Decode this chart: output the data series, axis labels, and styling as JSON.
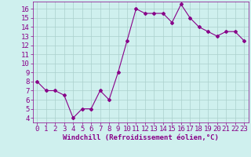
{
  "x": [
    0,
    1,
    2,
    3,
    4,
    5,
    6,
    7,
    8,
    9,
    10,
    11,
    12,
    13,
    14,
    15,
    16,
    17,
    18,
    19,
    20,
    21,
    22,
    23
  ],
  "y": [
    8,
    7,
    7,
    6.5,
    4,
    5,
    5,
    7,
    6,
    9,
    12.5,
    16,
    15.5,
    15.5,
    15.5,
    14.5,
    16.5,
    15,
    14,
    13.5,
    13,
    13.5,
    13.5,
    12.5
  ],
  "line_color": "#880088",
  "marker": "D",
  "marker_size": 2,
  "background_color": "#cff0ee",
  "grid_color": "#aacfcc",
  "xlabel": "Windchill (Refroidissement éolien,°C)",
  "xlabel_color": "#880088",
  "xlabel_fontsize": 6.5,
  "tick_color": "#880088",
  "tick_fontsize": 6.5,
  "xlim": [
    -0.5,
    23.5
  ],
  "ylim": [
    3.5,
    16.8
  ],
  "yticks": [
    4,
    5,
    6,
    7,
    8,
    9,
    10,
    11,
    12,
    13,
    14,
    15,
    16
  ],
  "xticks": [
    0,
    1,
    2,
    3,
    4,
    5,
    6,
    7,
    8,
    9,
    10,
    11,
    12,
    13,
    14,
    15,
    16,
    17,
    18,
    19,
    20,
    21,
    22,
    23
  ]
}
